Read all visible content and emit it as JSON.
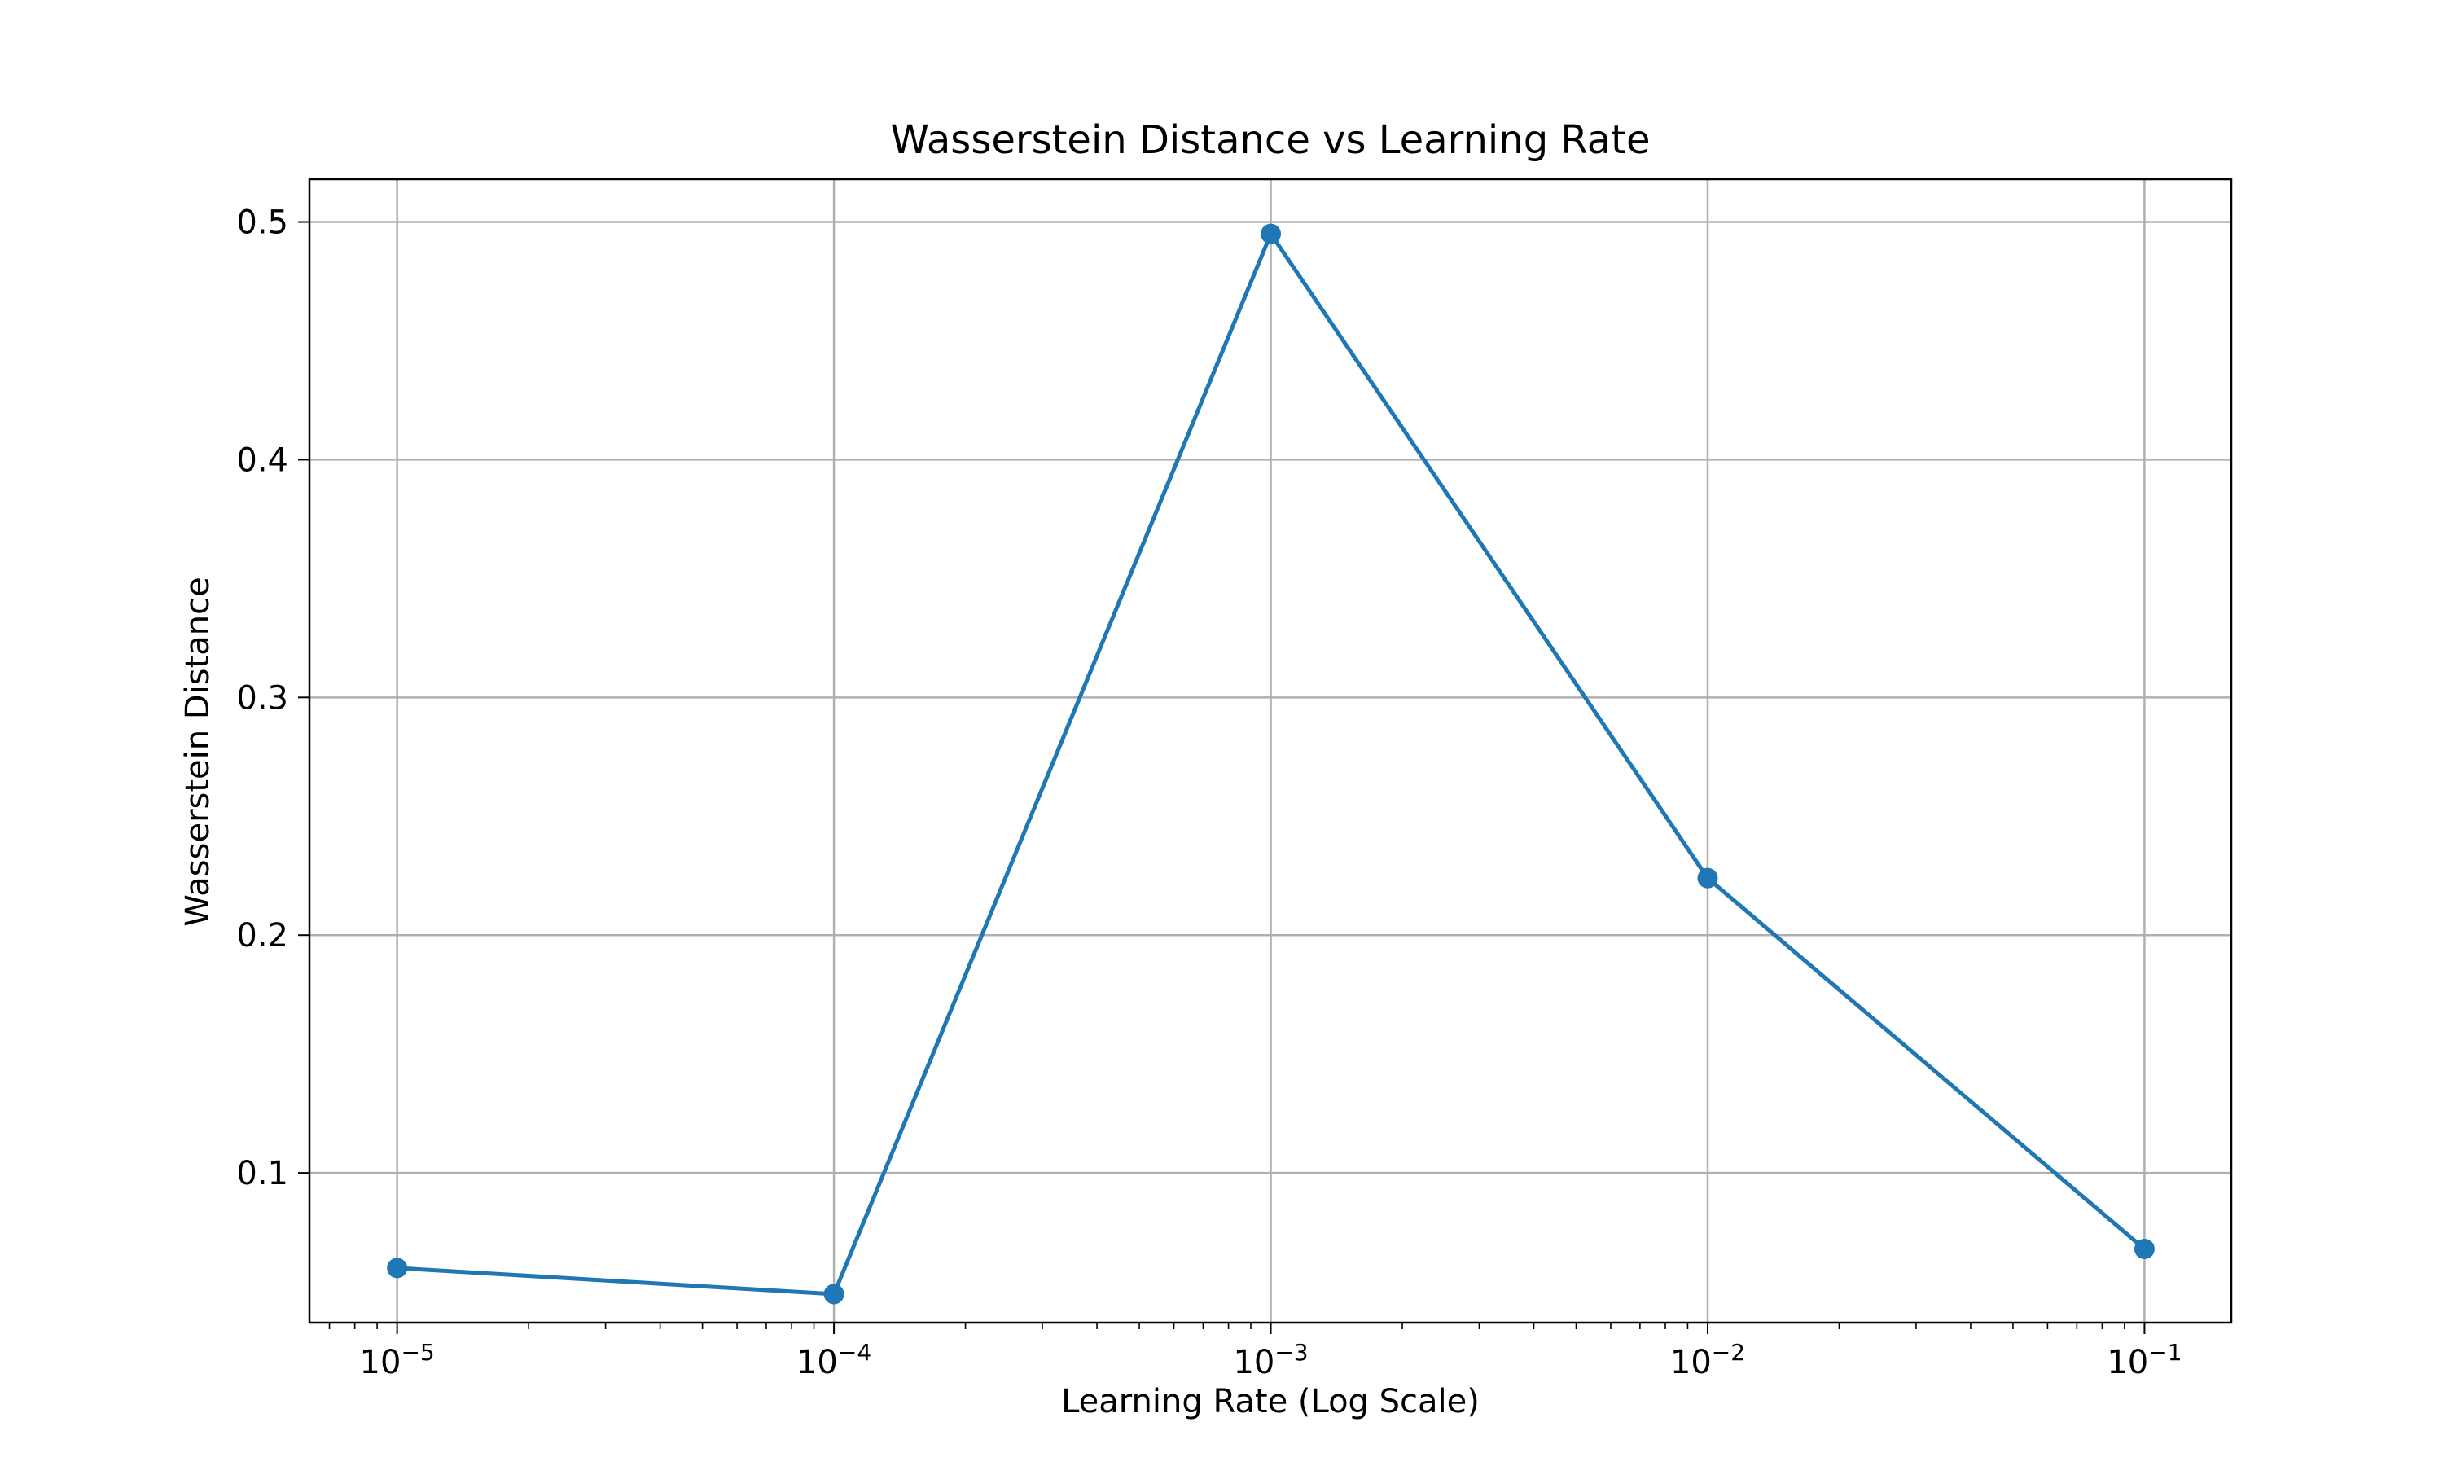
{
  "chart_data": {
    "type": "line",
    "title": "Wasserstein Distance vs Learning Rate",
    "xlabel": "Learning Rate (Log Scale)",
    "ylabel": "Wasserstein Distance",
    "x_scale": "log",
    "xlim": [
      6.3e-06,
      0.158
    ],
    "ylim": [
      0.037,
      0.518
    ],
    "grid": true,
    "color": "#1f77b4",
    "x_ticks": [
      {
        "value": 1e-05,
        "base": "10",
        "exp": "−5"
      },
      {
        "value": 0.0001,
        "base": "10",
        "exp": "−4"
      },
      {
        "value": 0.001,
        "base": "10",
        "exp": "−3"
      },
      {
        "value": 0.01,
        "base": "10",
        "exp": "−2"
      },
      {
        "value": 0.1,
        "base": "10",
        "exp": "−1"
      }
    ],
    "y_ticks": [
      {
        "value": 0.1,
        "label": "0.1"
      },
      {
        "value": 0.2,
        "label": "0.2"
      },
      {
        "value": 0.3,
        "label": "0.3"
      },
      {
        "value": 0.4,
        "label": "0.4"
      },
      {
        "value": 0.5,
        "label": "0.5"
      }
    ],
    "series": [
      {
        "x": [
          1e-05,
          0.0001,
          0.001,
          0.01,
          0.1
        ],
        "y": [
          0.06,
          0.049,
          0.495,
          0.224,
          0.068
        ]
      }
    ]
  }
}
